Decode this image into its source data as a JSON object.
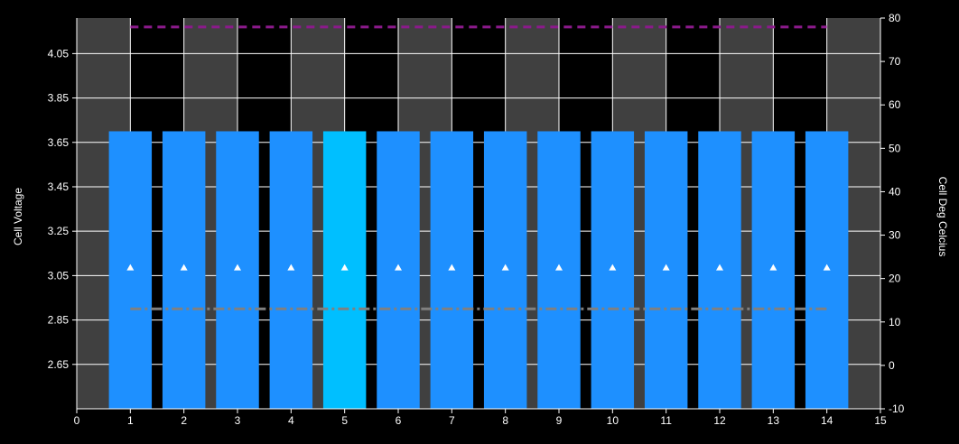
{
  "chart_data": {
    "type": "bar",
    "x": [
      1,
      2,
      3,
      4,
      5,
      6,
      7,
      8,
      9,
      10,
      11,
      12,
      13,
      14
    ],
    "xlim": [
      0,
      15
    ],
    "x_ticks": [
      0,
      1,
      2,
      3,
      4,
      5,
      6,
      7,
      8,
      9,
      10,
      11,
      12,
      13,
      14,
      15
    ],
    "ylabel": "Cell Voltage",
    "y_ticks": [
      "2.65",
      "2.85",
      "3.05",
      "3.25",
      "3.45",
      "3.65",
      "3.85",
      "4.05"
    ],
    "ylim": [
      2.45,
      4.21
    ],
    "y2label": "Cell Deg Celcius",
    "y2_ticks": [
      -10,
      0,
      10,
      20,
      30,
      40,
      50,
      60,
      70,
      80
    ],
    "y2lim": [
      -10,
      80
    ],
    "grid": true,
    "series": [
      {
        "type": "bar",
        "axis": "left",
        "values": [
          3.7,
          3.7,
          3.7,
          3.7,
          3.7,
          3.7,
          3.7,
          3.7,
          3.7,
          3.7,
          3.7,
          3.7,
          3.7,
          3.7
        ],
        "highlight_index": 4,
        "color": "#1e90ff",
        "highlight_color": "#00bfff"
      },
      {
        "type": "scatter",
        "axis": "right",
        "marker": "triangle",
        "values": [
          22.5,
          22.5,
          22.5,
          22.5,
          22.5,
          22.5,
          22.5,
          22.5,
          22.5,
          22.5,
          22.5,
          22.5,
          22.5,
          22.5
        ],
        "color": "#ffffff"
      },
      {
        "type": "line",
        "axis": "left",
        "style": "dashed",
        "x_range": [
          1,
          14
        ],
        "value": 4.17,
        "color": "#8b1a8b"
      },
      {
        "type": "line",
        "axis": "left",
        "style": "dash-dot",
        "x_range": [
          1,
          14
        ],
        "value": 2.9,
        "color": "#808080"
      }
    ],
    "colors": {
      "background": "#000000",
      "plot_stripe_light": "#404040",
      "plot_stripe_dark": "#000000",
      "grid": "#ffffff",
      "text": "#ffffff"
    }
  }
}
